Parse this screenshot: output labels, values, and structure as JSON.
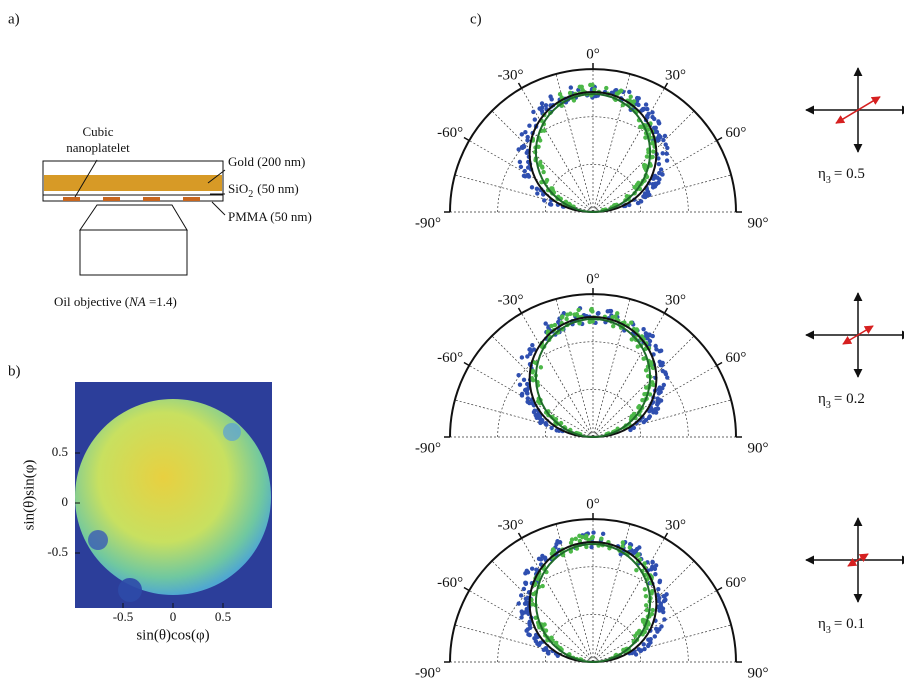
{
  "panels": {
    "a": "a)",
    "b": "b)",
    "c": "c)"
  },
  "diagram": {
    "nanoplatelet_1": "Cubic",
    "nanoplatelet_2": "nanoplatelet",
    "gold": "Gold (200 nm)",
    "sio2": "SiO",
    "sio2_sub": "2",
    "sio2_thick": "(50 nm)",
    "pmma": "PMMA (50 nm)",
    "objective_1": "Oil objective (",
    "objective_na": "NA",
    "objective_2": " =1.4)"
  },
  "image": {
    "xlabel": "sin(θ)cos(φ)",
    "ylabel": "sin(θ)sin(φ)",
    "xticks": [
      -0.5,
      0,
      0.5
    ],
    "yticks": [
      0.5,
      0,
      -0.5
    ]
  },
  "polar": {
    "angle_ticks": [
      {
        "value": -90,
        "label": "-90°"
      },
      {
        "value": -60,
        "label": "-60°"
      },
      {
        "value": -30,
        "label": "-30°"
      },
      {
        "value": 0,
        "label": "0°"
      },
      {
        "value": 30,
        "label": "30°"
      },
      {
        "value": 60,
        "label": "60°"
      },
      {
        "value": 90,
        "label": "90°"
      }
    ],
    "plots": [
      {
        "symbol": "η",
        "sub": "3",
        "value": "= 0.5"
      },
      {
        "symbol": "η",
        "sub": "3",
        "value": "= 0.2"
      },
      {
        "symbol": "η",
        "sub": "3",
        "value": "= 0.1"
      }
    ]
  }
}
